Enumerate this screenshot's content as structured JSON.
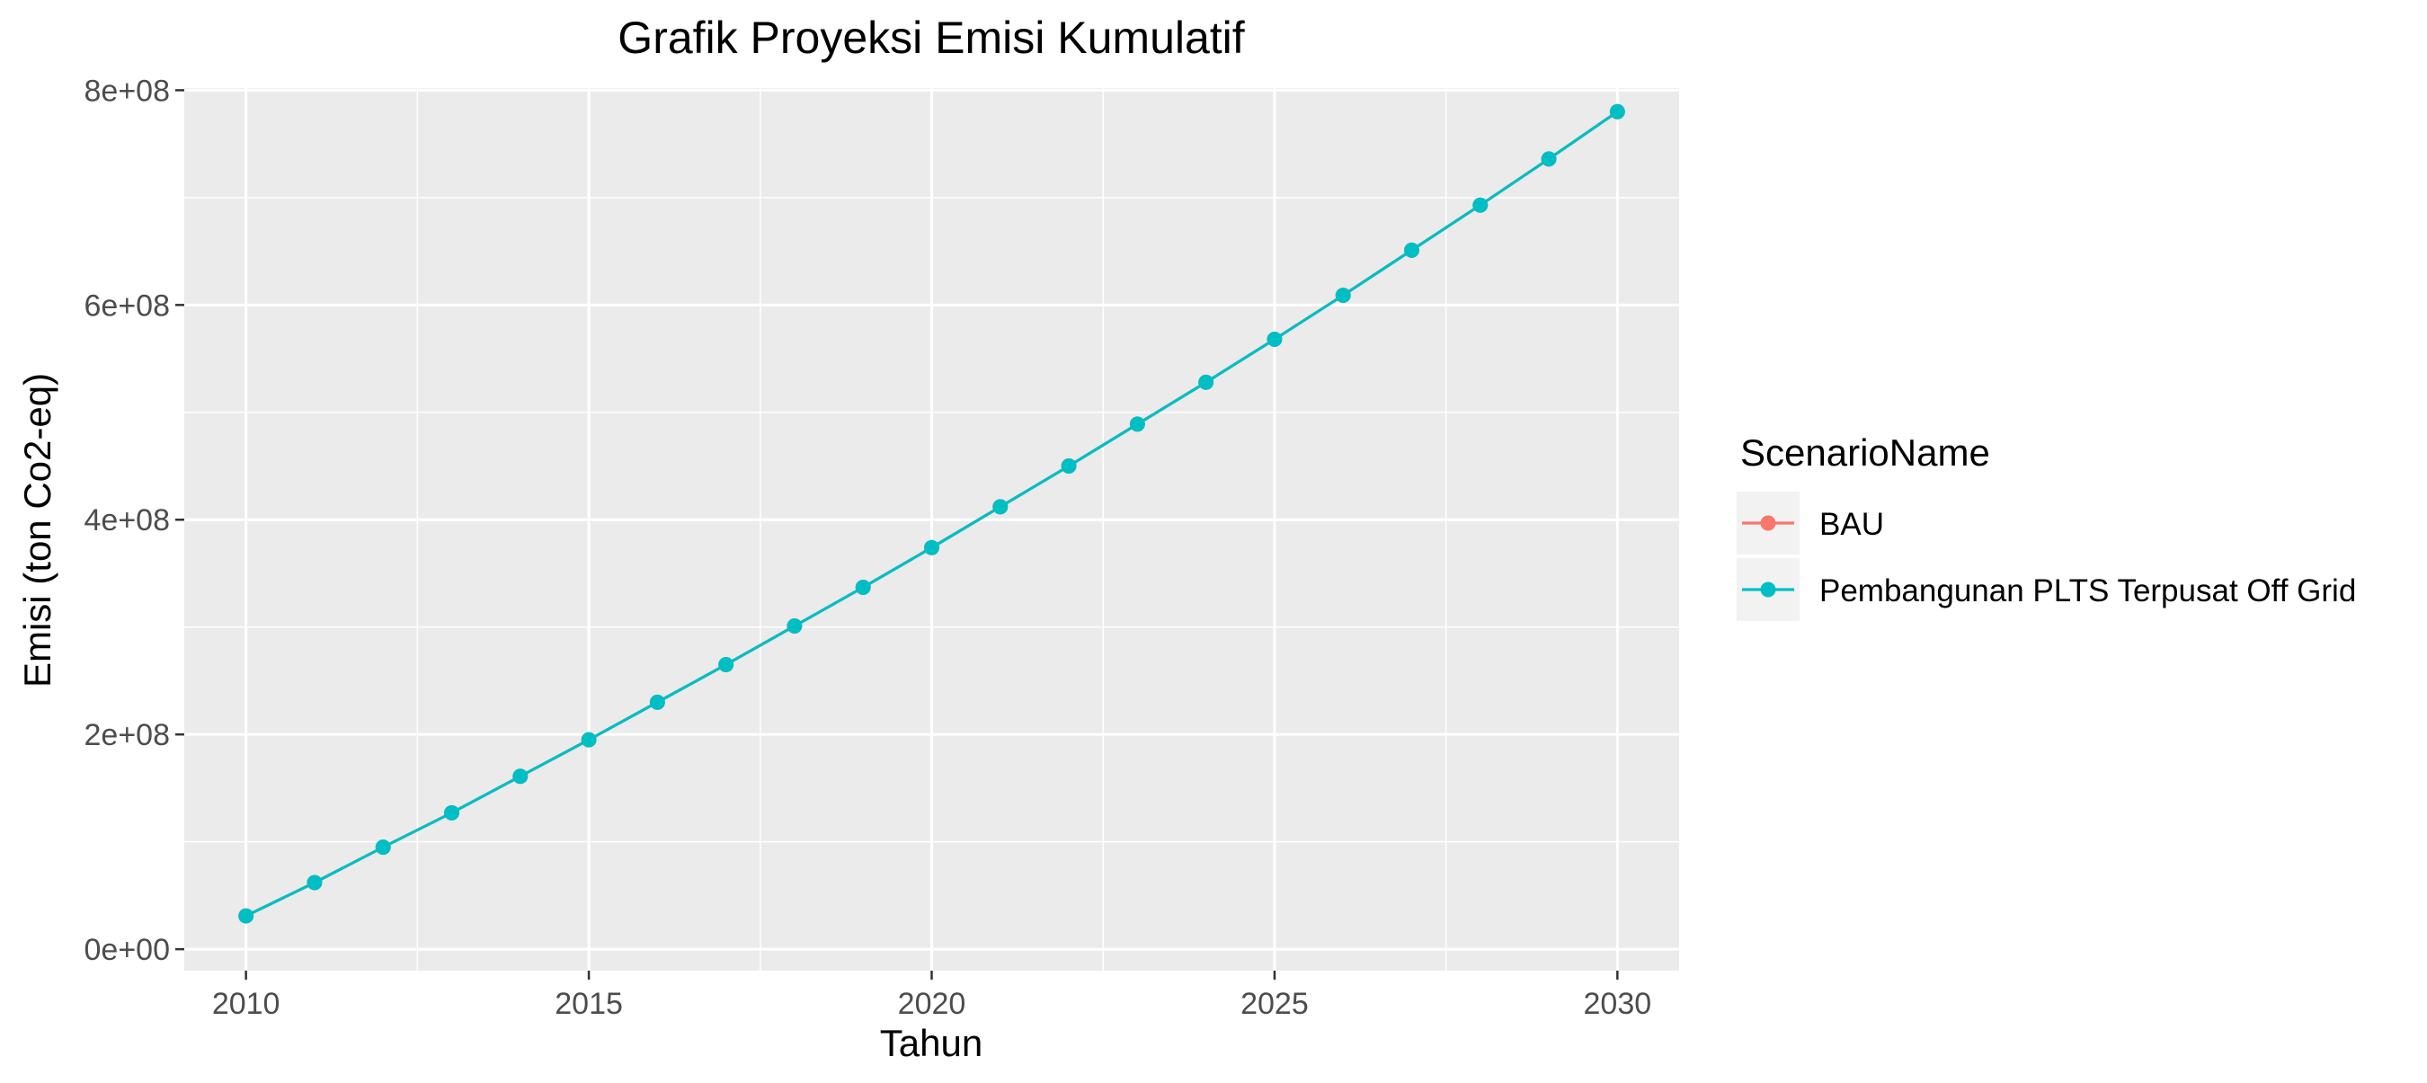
{
  "chart_data": {
    "type": "line",
    "title": "Grafik Proyeksi Emisi Kumulatif",
    "xlabel": "Tahun",
    "ylabel": "Emisi (ton Co2-eq)",
    "xlim": [
      2009.1,
      2030.9
    ],
    "ylim": [
      -20000000,
      802000000
    ],
    "x_ticks": [
      2010,
      2015,
      2020,
      2025,
      2030
    ],
    "x_tick_labels": [
      "2010",
      "2015",
      "2020",
      "2025",
      "2030"
    ],
    "y_ticks": [
      0,
      200000000,
      400000000,
      600000000,
      800000000
    ],
    "y_tick_labels": [
      "0e+00",
      "2e+08",
      "4e+08",
      "6e+08",
      "8e+08"
    ],
    "grid": true,
    "legend": {
      "title": "ScenarioName",
      "position": "right"
    },
    "x": [
      2010,
      2011,
      2012,
      2013,
      2014,
      2015,
      2016,
      2017,
      2018,
      2019,
      2020,
      2021,
      2022,
      2023,
      2024,
      2025,
      2026,
      2027,
      2028,
      2029,
      2030
    ],
    "series": [
      {
        "name": "BAU",
        "color": "#F8766D",
        "values": [
          31000000,
          62000000,
          95000000,
          127000000,
          161000000,
          195000000,
          230000000,
          265000000,
          301000000,
          337000000,
          374000000,
          412000000,
          450000000,
          489000000,
          528000000,
          568000000,
          609000000,
          651000000,
          693000000,
          736000000,
          780000000
        ]
      },
      {
        "name": "Pembangunan PLTS Terpusat Off Grid",
        "color": "#00BFC4",
        "values": [
          31000000,
          62000000,
          95000000,
          127000000,
          161000000,
          195000000,
          230000000,
          265000000,
          301000000,
          337000000,
          374000000,
          412000000,
          450000000,
          489000000,
          528000000,
          568000000,
          609000000,
          651000000,
          693000000,
          736000000,
          780000000
        ]
      }
    ]
  },
  "colors": {
    "panel_background": "#EBEBEB",
    "grid_line": "#FFFFFF",
    "text": "#000000",
    "tick_text": "#4D4D4D"
  }
}
